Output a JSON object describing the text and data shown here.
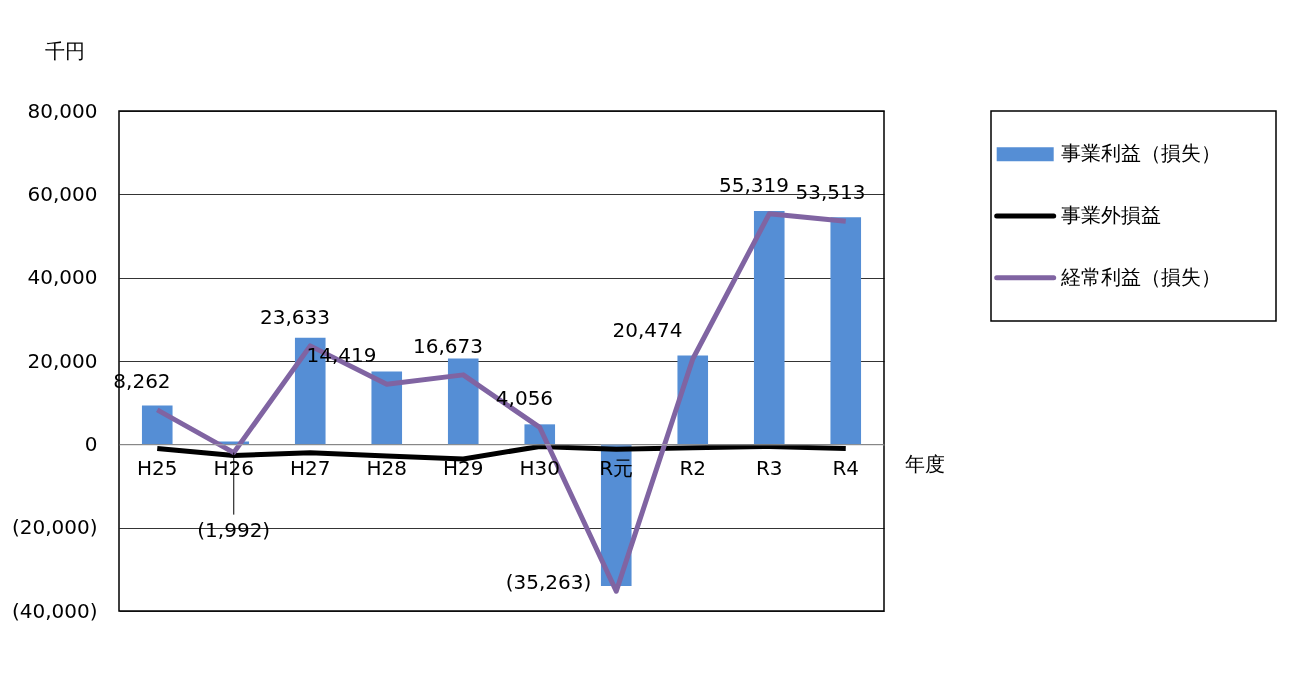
{
  "chart_data": {
    "type": "bar",
    "categories": [
      "H25",
      "H26",
      "H27",
      "H28",
      "H29",
      "H30",
      "R元",
      "R2",
      "R3",
      "R4"
    ],
    "xlabel": "年度",
    "ylabel": "千円",
    "series": [
      {
        "name": "事業利益（損失）",
        "color": "#558ed5",
        "values": [
          9300,
          700,
          25600,
          17500,
          20600,
          4800,
          -34000,
          21300,
          56000,
          54500
        ]
      },
      {
        "name": "事業外損益",
        "type": "line",
        "color": "#000000",
        "values": [
          -1000,
          -2700,
          -2000,
          -2800,
          -3500,
          -500,
          -1200,
          -800,
          -500,
          -1000
        ]
      },
      {
        "name": "経常利益（損失）",
        "type": "line",
        "color": "#8064a2",
        "values": [
          8262,
          -1992,
          23633,
          14419,
          16673,
          4056,
          -35263,
          20474,
          55319,
          53513
        ],
        "value_labels": [
          "8,262",
          "(1,992)",
          "23,633",
          "14,419",
          "16,673",
          "4,056",
          "(35,263)",
          "20,474",
          "55,319",
          "53,513"
        ]
      }
    ],
    "ylim": [
      -40000,
      80000
    ],
    "yticks": [
      {
        "value": -40000,
        "label": "(40,000)"
      },
      {
        "value": -20000,
        "label": "(20,000)"
      },
      0,
      {
        "value": 20000,
        "label": "20,000"
      },
      {
        "value": 40000,
        "label": "40,000"
      },
      {
        "value": 60000,
        "label": "60,000"
      },
      {
        "value": 80000,
        "label": "80,000"
      }
    ],
    "grid": "y",
    "legend": "top right",
    "marker": "none",
    "line_style": "solid"
  }
}
